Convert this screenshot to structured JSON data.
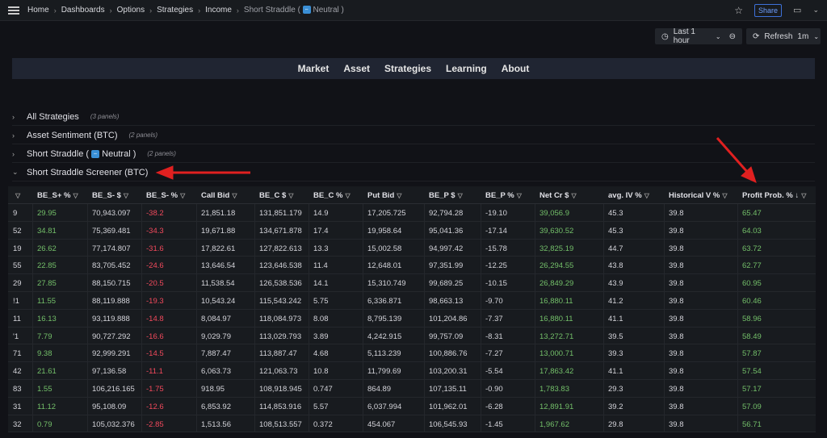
{
  "breadcrumb": [
    "Home",
    "Dashboards",
    "Options",
    "Strategies",
    "Income"
  ],
  "breadcrumb_current_prefix": "Short Straddle (",
  "breadcrumb_current_suffix": "Neutral )",
  "topbar": {
    "share": "Share"
  },
  "time_picker": {
    "label": "Last 1 hour"
  },
  "refresh": {
    "label": "Refresh",
    "interval": "1m"
  },
  "nav": [
    "Market",
    "Asset",
    "Strategies",
    "Learning",
    "About"
  ],
  "rows": [
    {
      "title": "All Strategies",
      "count": "(3 panels)",
      "expanded": false
    },
    {
      "title": "Asset Sentiment (BTC)",
      "count": "(2 panels)",
      "expanded": false
    },
    {
      "title": "Short Straddle (",
      "title_suffix": "Neutral )",
      "count": "(2 panels)",
      "expanded": false
    },
    {
      "title": "Short Straddle Screener (BTC)",
      "count": "",
      "expanded": true
    }
  ],
  "colors": {
    "positive": "#73bf69",
    "negative": "#f2495c",
    "annotation": "#e02020"
  },
  "table": {
    "columns": [
      "",
      "BE_S+ %",
      "BE_S- $",
      "BE_S- %",
      "Call Bid",
      "BE_C $",
      "BE_C %",
      "Put Bid",
      "BE_P $",
      "BE_P %",
      "Net Cr $",
      "avg. IV %",
      "Historical V %",
      "Profit Prob. %"
    ],
    "sort": {
      "column": "Profit Prob. %",
      "direction": "desc"
    },
    "rows": [
      [
        "9",
        "29.95",
        "70,943.097",
        "-38.2",
        "21,851.18",
        "131,851.179",
        "14.9",
        "17,205.725",
        "92,794.28",
        "-19.10",
        "39,056.9",
        "45.3",
        "39.8",
        "65.47"
      ],
      [
        "52",
        "34.81",
        "75,369.481",
        "-34.3",
        "19,671.88",
        "134,671.878",
        "17.4",
        "19,958.64",
        "95,041.36",
        "-17.14",
        "39,630.52",
        "45.3",
        "39.8",
        "64.03"
      ],
      [
        "19",
        "26.62",
        "77,174.807",
        "-31.6",
        "17,822.61",
        "127,822.613",
        "13.3",
        "15,002.58",
        "94,997.42",
        "-15.78",
        "32,825.19",
        "44.7",
        "39.8",
        "63.72"
      ],
      [
        "55",
        "22.85",
        "83,705.452",
        "-24.6",
        "13,646.54",
        "123,646.538",
        "11.4",
        "12,648.01",
        "97,351.99",
        "-12.25",
        "26,294.55",
        "43.8",
        "39.8",
        "62.77"
      ],
      [
        "29",
        "27.85",
        "88,150.715",
        "-20.5",
        "11,538.54",
        "126,538.536",
        "14.1",
        "15,310.749",
        "99,689.25",
        "-10.15",
        "26,849.29",
        "43.9",
        "39.8",
        "60.95"
      ],
      [
        "!1",
        "11.55",
        "88,119.888",
        "-19.3",
        "10,543.24",
        "115,543.242",
        "5.75",
        "6,336.871",
        "98,663.13",
        "-9.70",
        "16,880.11",
        "41.2",
        "39.8",
        "60.46"
      ],
      [
        "11",
        "16.13",
        "93,119.888",
        "-14.8",
        "8,084.97",
        "118,084.973",
        "8.08",
        "8,795.139",
        "101,204.86",
        "-7.37",
        "16,880.11",
        "41.1",
        "39.8",
        "58.96"
      ],
      [
        "'1",
        "7.79",
        "90,727.292",
        "-16.6",
        "9,029.79",
        "113,029.793",
        "3.89",
        "4,242.915",
        "99,757.09",
        "-8.31",
        "13,272.71",
        "39.5",
        "39.8",
        "58.49"
      ],
      [
        "71",
        "9.38",
        "92,999.291",
        "-14.5",
        "7,887.47",
        "113,887.47",
        "4.68",
        "5,113.239",
        "100,886.76",
        "-7.27",
        "13,000.71",
        "39.3",
        "39.8",
        "57.87"
      ],
      [
        "42",
        "21.61",
        "97,136.58",
        "-11.1",
        "6,063.73",
        "121,063.73",
        "10.8",
        "11,799.69",
        "103,200.31",
        "-5.54",
        "17,863.42",
        "41.1",
        "39.8",
        "57.54"
      ],
      [
        "83",
        "1.55",
        "106,216.165",
        "-1.75",
        "918.95",
        "108,918.945",
        "0.747",
        "864.89",
        "107,135.11",
        "-0.90",
        "1,783.83",
        "29.3",
        "39.8",
        "57.17"
      ],
      [
        "31",
        "11.12",
        "95,108.09",
        "-12.6",
        "6,853.92",
        "114,853.916",
        "5.57",
        "6,037.994",
        "101,962.01",
        "-6.28",
        "12,891.91",
        "39.2",
        "39.8",
        "57.09"
      ],
      [
        "32",
        "0.79",
        "105,032.376",
        "-2.85",
        "1,513.56",
        "108,513.557",
        "0.372",
        "454.067",
        "106,545.93",
        "-1.45",
        "1,967.62",
        "29.8",
        "39.8",
        "56.71"
      ]
    ]
  }
}
